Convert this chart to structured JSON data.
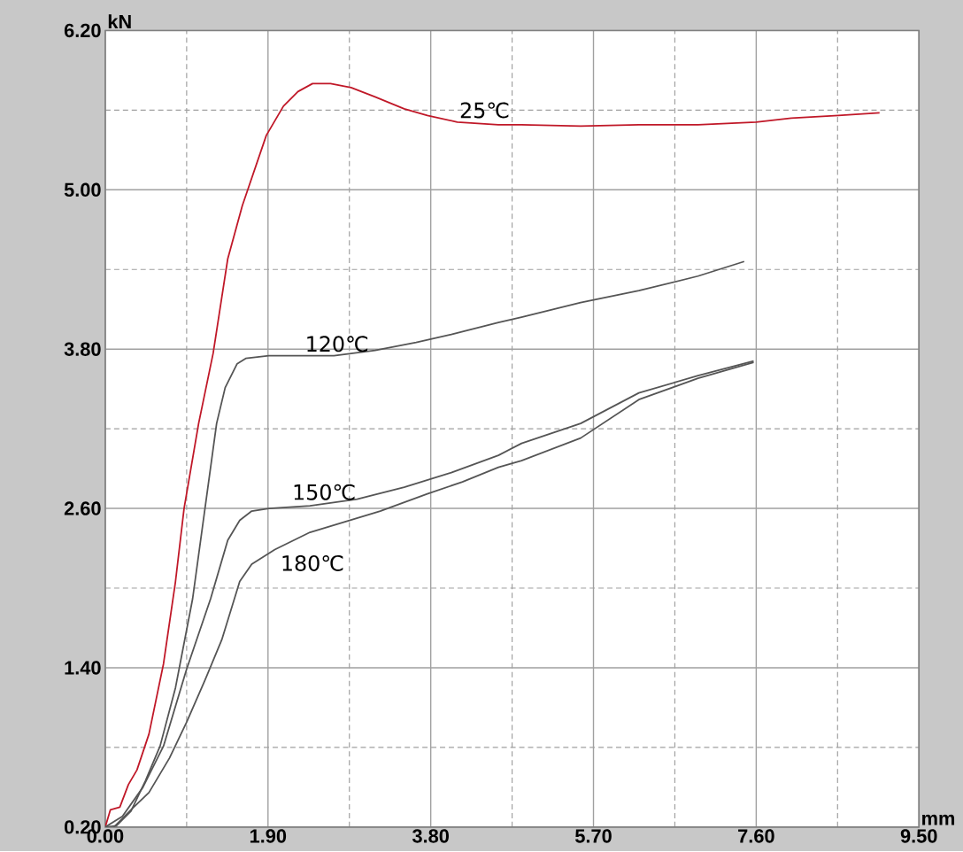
{
  "chart_data": {
    "type": "line",
    "xlabel": "mm",
    "ylabel": "kN",
    "xlim": [
      0,
      9.5
    ],
    "ylim": [
      0.2,
      6.2
    ],
    "xticks": [
      {
        "value": 0,
        "label": "0.00"
      },
      {
        "value": 1.9,
        "label": "1.90"
      },
      {
        "value": 3.8,
        "label": "3.80"
      },
      {
        "value": 5.7,
        "label": "5.70"
      },
      {
        "value": 7.6,
        "label": "7.60"
      },
      {
        "value": 9.5,
        "label": "9.50"
      }
    ],
    "yticks": [
      {
        "value": 0.2,
        "label": "0.20"
      },
      {
        "value": 1.4,
        "label": "1.40"
      },
      {
        "value": 2.6,
        "label": "2.60"
      },
      {
        "value": 3.8,
        "label": "3.80"
      },
      {
        "value": 5,
        "label": "5.00"
      },
      {
        "value": 6.2,
        "label": "6.20"
      }
    ],
    "grid": true,
    "series": [
      {
        "name": "25℃",
        "color": "#c01828",
        "x": [
          0,
          0.06,
          0.17,
          0.27,
          0.37,
          0.51,
          0.68,
          0.82,
          0.92,
          1.09,
          1.26,
          1.43,
          1.6,
          1.88,
          2.08,
          2.25,
          2.42,
          2.63,
          2.87,
          3.15,
          3.49,
          3.76,
          4.11,
          4.59,
          4.86,
          5.55,
          6.23,
          6.92,
          7.6,
          8.01,
          8.56,
          9.04
        ],
        "values": [
          0.2,
          0.33,
          0.35,
          0.52,
          0.63,
          0.9,
          1.43,
          2.05,
          2.6,
          3.24,
          3.77,
          4.48,
          4.88,
          5.41,
          5.63,
          5.74,
          5.8,
          5.8,
          5.77,
          5.7,
          5.61,
          5.56,
          5.51,
          5.49,
          5.49,
          5.48,
          5.49,
          5.49,
          5.51,
          5.54,
          5.56,
          5.58
        ]
      },
      {
        "name": "120℃",
        "color": "#555555",
        "x": [
          0,
          0.13,
          0.3,
          0.47,
          0.64,
          0.82,
          1.02,
          1.3,
          1.4,
          1.54,
          1.64,
          1.91,
          2.39,
          2.67,
          3.15,
          3.63,
          4.04,
          4.59,
          4.86,
          5.55,
          6.23,
          6.92,
          7.46
        ],
        "values": [
          0.2,
          0.21,
          0.32,
          0.55,
          0.81,
          1.25,
          1.92,
          3.24,
          3.51,
          3.69,
          3.73,
          3.75,
          3.75,
          3.75,
          3.79,
          3.85,
          3.91,
          4.0,
          4.04,
          4.15,
          4.24,
          4.35,
          4.46
        ]
      },
      {
        "name": "150℃",
        "color": "#555555",
        "x": [
          0,
          0.2,
          0.44,
          0.68,
          0.95,
          1.23,
          1.43,
          1.57,
          1.71,
          1.91,
          2.39,
          2.94,
          3.49,
          4.04,
          4.59,
          4.86,
          5.55,
          6.23,
          6.92,
          7.57
        ],
        "values": [
          0.2,
          0.28,
          0.5,
          0.81,
          1.39,
          1.92,
          2.36,
          2.51,
          2.58,
          2.6,
          2.62,
          2.67,
          2.76,
          2.87,
          3.0,
          3.09,
          3.24,
          3.47,
          3.6,
          3.71
        ]
      },
      {
        "name": "180℃",
        "color": "#555555",
        "x": [
          0.1,
          0.3,
          0.51,
          0.75,
          0.95,
          1.16,
          1.36,
          1.57,
          1.71,
          1.98,
          2.39,
          2.8,
          3.21,
          3.76,
          4.17,
          4.59,
          4.86,
          5.55,
          6.23,
          6.92,
          7.57
        ],
        "values": [
          0.2,
          0.33,
          0.46,
          0.72,
          0.99,
          1.3,
          1.61,
          2.05,
          2.18,
          2.29,
          2.42,
          2.5,
          2.58,
          2.71,
          2.8,
          2.91,
          2.96,
          3.13,
          3.42,
          3.58,
          3.7
        ]
      }
    ]
  }
}
